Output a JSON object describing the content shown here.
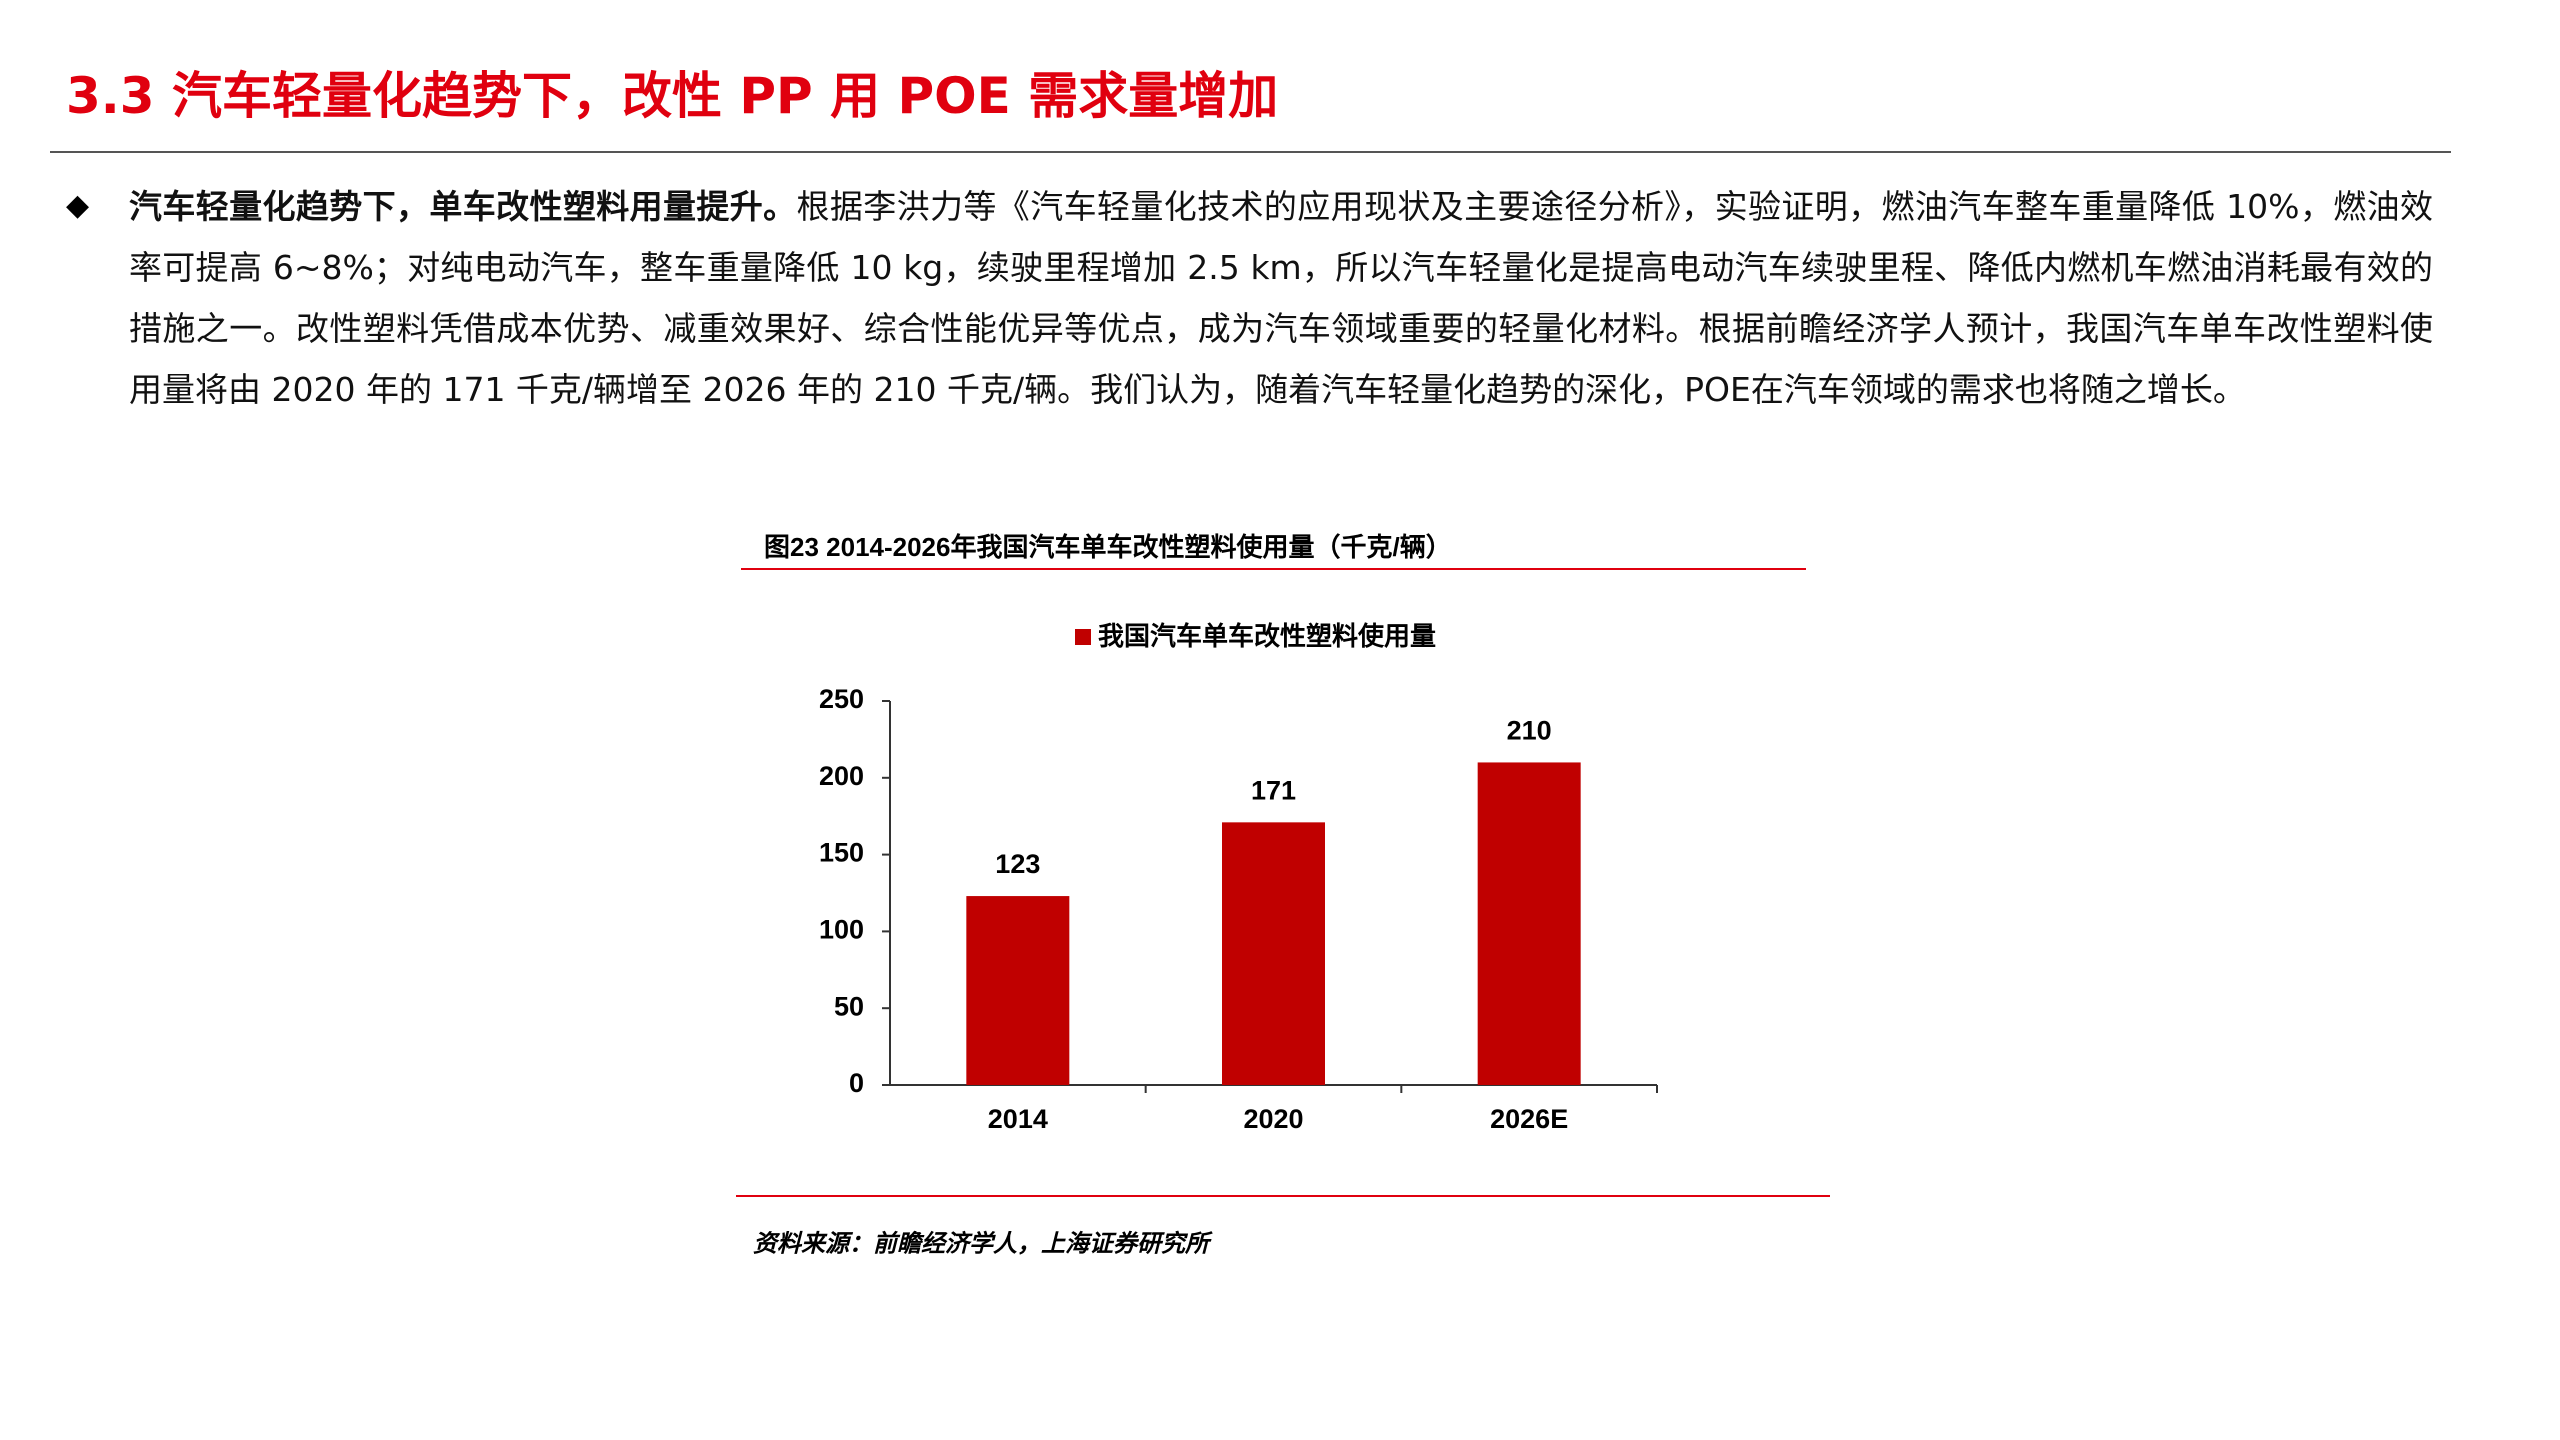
{
  "header": {
    "title": "3.3 汽车轻量化趋势下，改性 PP 用 POE 需求量增加"
  },
  "paragraph": {
    "lead": "汽车轻量化趋势下，单车改性塑料用量提升。",
    "body": "根据李洪力等《汽车轻量化技术的应用现状及主要途径分析》，实验证明，燃油汽车整车重量降低 10%，燃油效率可提高 6~8%；对纯电动汽车，整车重量降低 10 kg，续驶里程增加 2.5 km，所以汽车轻量化是提高电动汽车续驶里程、降低内燃机车燃油消耗最有效的措施之一。改性塑料凭借成本优势、减重效果好、综合性能优异等优点，成为汽车领域重要的轻量化材料。根据前瞻经济学人预计，我国汽车单车改性塑料使用量将由 2020 年的 171 千克/辆增至 2026 年的 210 千克/辆。我们认为，随着汽车轻量化趋势的深化，POE在汽车领域的需求也将随之增长。"
  },
  "chart_data": {
    "type": "bar",
    "title": "图23 2014-2026年我国汽车单车改性塑料使用量（千克/辆）",
    "categories": [
      "2014",
      "2020",
      "2026E"
    ],
    "series": [
      {
        "name": "我国汽车单车改性塑料使用量",
        "color": "#c00000",
        "values": [
          123,
          171,
          210
        ]
      }
    ],
    "ylim": [
      0,
      250
    ],
    "yticks": [
      0,
      50,
      100,
      150,
      200,
      250
    ],
    "grid": false,
    "legend": "top",
    "source": "资料来源：前瞻经济学人，上海证券研究所"
  }
}
